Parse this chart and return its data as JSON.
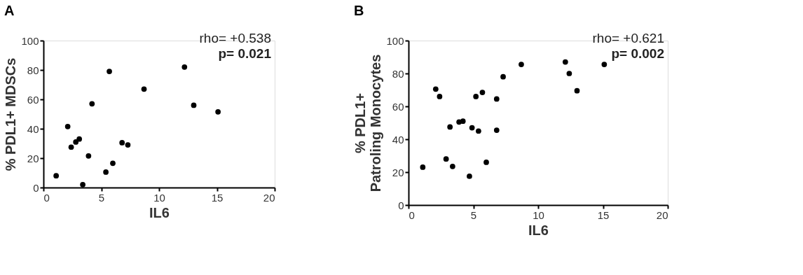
{
  "chart_data": [
    {
      "type": "scatter",
      "title": "A",
      "xlabel": "IL6",
      "ylabel": "% PDL1+ MDSCs",
      "annotations": [
        "rho= +0.538",
        "p= 0.021"
      ],
      "x": [
        1.1,
        2.1,
        2.4,
        2.8,
        3.1,
        3.4,
        3.9,
        4.2,
        5.4,
        5.7,
        6.0,
        6.8,
        7.3,
        8.7,
        12.2,
        13.0,
        15.1
      ],
      "series": [
        {
          "color": "#000000",
          "values": [
            8,
            41.5,
            27.5,
            31,
            33,
            2,
            21.5,
            57,
            10.5,
            79,
            16.5,
            30.5,
            29,
            67,
            82,
            56,
            51.5
          ]
        }
      ],
      "xlim": [
        0,
        20
      ],
      "xticks": [
        0,
        5,
        10,
        15,
        20
      ],
      "ylim": [
        0,
        100
      ],
      "yticks": [
        0,
        20,
        40,
        60,
        80,
        100
      ],
      "grid": false,
      "marker": "circle"
    },
    {
      "type": "scatter",
      "title": "B",
      "xlabel": "IL6",
      "ylabel": "% PDL1+\nPatroling Monocytes",
      "annotations": [
        "rho= +0.621",
        "p= 0.002"
      ],
      "x": [
        1.1,
        2.1,
        2.4,
        2.9,
        3.2,
        3.4,
        3.9,
        4.2,
        4.7,
        4.9,
        5.2,
        5.4,
        5.7,
        6.0,
        6.8,
        6.8,
        7.3,
        8.7,
        12.1,
        12.4,
        13.0,
        15.1
      ],
      "series": [
        {
          "color": "#000000",
          "values": [
            23,
            70.5,
            66,
            28,
            47.5,
            23.5,
            50.5,
            51,
            17.5,
            47,
            66,
            45,
            68.5,
            26,
            64.5,
            45.5,
            78,
            85.5,
            87,
            80,
            69.5,
            85.5
          ]
        }
      ],
      "xlim": [
        0,
        20
      ],
      "xticks": [
        0,
        5,
        10,
        15,
        20
      ],
      "ylim": [
        0,
        100
      ],
      "yticks": [
        0,
        20,
        40,
        60,
        80,
        100
      ],
      "grid": false,
      "marker": "circle"
    }
  ]
}
